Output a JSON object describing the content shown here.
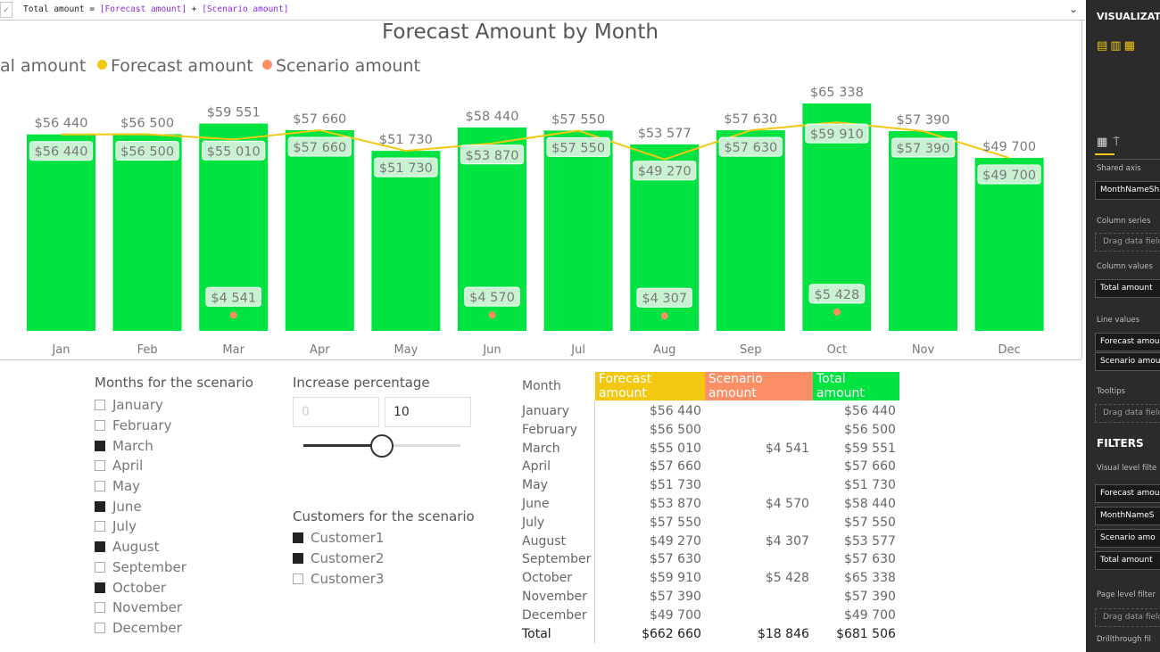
{
  "formula_bar": {
    "check": "✓",
    "measure": "Total amount",
    "op1": " = ",
    "field1": "[Forecast amount]",
    "op2": " + ",
    "field2": "[Scenario amount]",
    "expand_icon": "chevron-down-icon"
  },
  "chart": {
    "title": "Forecast Amount by Month",
    "legend": [
      {
        "label": "Total amount",
        "visible_text": "al amount",
        "color": "#01e340"
      },
      {
        "label": "Forecast amount",
        "color": "#f2c811"
      },
      {
        "label": "Scenario amount",
        "color": "#fd8f67"
      }
    ]
  },
  "chart_data": {
    "type": "bar",
    "title": "Forecast Amount by Month",
    "categories": [
      "Jan",
      "Feb",
      "Mar",
      "Apr",
      "May",
      "Jun",
      "Jul",
      "Aug",
      "Sep",
      "Oct",
      "Nov",
      "Dec"
    ],
    "series": [
      {
        "name": "Total amount",
        "kind": "column",
        "color": "#01e340",
        "values": [
          56440,
          56500,
          59551,
          57660,
          51730,
          58440,
          57550,
          53577,
          57630,
          65338,
          57390,
          49700
        ],
        "labels": [
          "$56 440",
          "$56 500",
          "$59 551",
          "$57 660",
          "$51 730",
          "$58 440",
          "$57 550",
          "$53 577",
          "$57 630",
          "$65 338",
          "$57 390",
          "$49 700"
        ]
      },
      {
        "name": "Forecast amount",
        "kind": "line",
        "color": "#f2c811",
        "values": [
          56440,
          56500,
          55010,
          57660,
          51730,
          53870,
          57550,
          49270,
          57630,
          59910,
          57390,
          49700
        ],
        "labels": [
          "$56 440",
          "$56 500",
          "$55 010",
          "$57 660",
          "$51 730",
          "$53 870",
          "$57 550",
          "$49 270",
          "$57 630",
          "$59 910",
          "$57 390",
          "$49 700"
        ]
      },
      {
        "name": "Scenario amount",
        "kind": "line",
        "color": "#fd8f67",
        "values": [
          null,
          null,
          4541,
          null,
          null,
          4570,
          null,
          4307,
          null,
          5428,
          null,
          null
        ],
        "labels": [
          null,
          null,
          "$4 541",
          null,
          null,
          "$4 570",
          null,
          "$4 307",
          null,
          "$5 428",
          null,
          null
        ]
      }
    ],
    "ylim": [
      0,
      65338
    ],
    "grid": false,
    "legend_position": "top-left"
  },
  "months_slicer": {
    "title": "Months for the scenario",
    "items": [
      {
        "label": "January",
        "checked": false
      },
      {
        "label": "February",
        "checked": false
      },
      {
        "label": "March",
        "checked": true
      },
      {
        "label": "April",
        "checked": false
      },
      {
        "label": "May",
        "checked": false
      },
      {
        "label": "June",
        "checked": true
      },
      {
        "label": "July",
        "checked": false
      },
      {
        "label": "August",
        "checked": true
      },
      {
        "label": "September",
        "checked": false
      },
      {
        "label": "October",
        "checked": true
      },
      {
        "label": "November",
        "checked": false
      },
      {
        "label": "December",
        "checked": false
      }
    ]
  },
  "increase": {
    "title": "Increase percentage",
    "min_value": "0",
    "max_value": "10",
    "slider_fraction": 0.5
  },
  "customers_slicer": {
    "title": "Customers for the scenario",
    "items": [
      {
        "label": "Customer1",
        "checked": true
      },
      {
        "label": "Customer2",
        "checked": true
      },
      {
        "label": "Customer3",
        "checked": false
      }
    ]
  },
  "table": {
    "headers": [
      "Month",
      "Forecast amount",
      "Scenario amount",
      "Total amount"
    ],
    "rows": [
      [
        "January",
        "$56 440",
        "",
        "$56 440"
      ],
      [
        "February",
        "$56 500",
        "",
        "$56 500"
      ],
      [
        "March",
        "$55 010",
        "$4 541",
        "$59 551"
      ],
      [
        "April",
        "$57 660",
        "",
        "$57 660"
      ],
      [
        "May",
        "$51 730",
        "",
        "$51 730"
      ],
      [
        "June",
        "$53 870",
        "$4 570",
        "$58 440"
      ],
      [
        "July",
        "$57 550",
        "",
        "$57 550"
      ],
      [
        "August",
        "$49 270",
        "$4 307",
        "$53 577"
      ],
      [
        "September",
        "$57 630",
        "",
        "$57 630"
      ],
      [
        "October",
        "$59 910",
        "$5 428",
        "$65 338"
      ],
      [
        "November",
        "$57 390",
        "",
        "$57 390"
      ],
      [
        "December",
        "$49 700",
        "",
        "$49 700"
      ]
    ],
    "total": [
      "Total",
      "$662 660",
      "$18 846",
      "$681 506"
    ]
  },
  "pane": {
    "visualizations": "VISUALIZAT",
    "shared_axis": "Shared axis",
    "shared_axis_field": "MonthNameSh",
    "column_series": "Column series",
    "column_series_drop": "Drag data field",
    "column_values": "Column values",
    "column_values_field": "Total amount",
    "line_values": "Line values",
    "line_field1": "Forecast amou",
    "line_field2": "Scenario amou",
    "tooltips": "Tooltips",
    "tooltips_drop": "Drag data field",
    "filters": "FILTERS",
    "visual_level": "Visual level filte",
    "filter1": "Forecast amou",
    "filter2": "MonthNameS",
    "filter3": "Scenario amo",
    "filter4": "Total amount",
    "page_level": "Page level filter",
    "page_drop": "Drag data field",
    "drillthrough": "Drillthrough fil"
  }
}
